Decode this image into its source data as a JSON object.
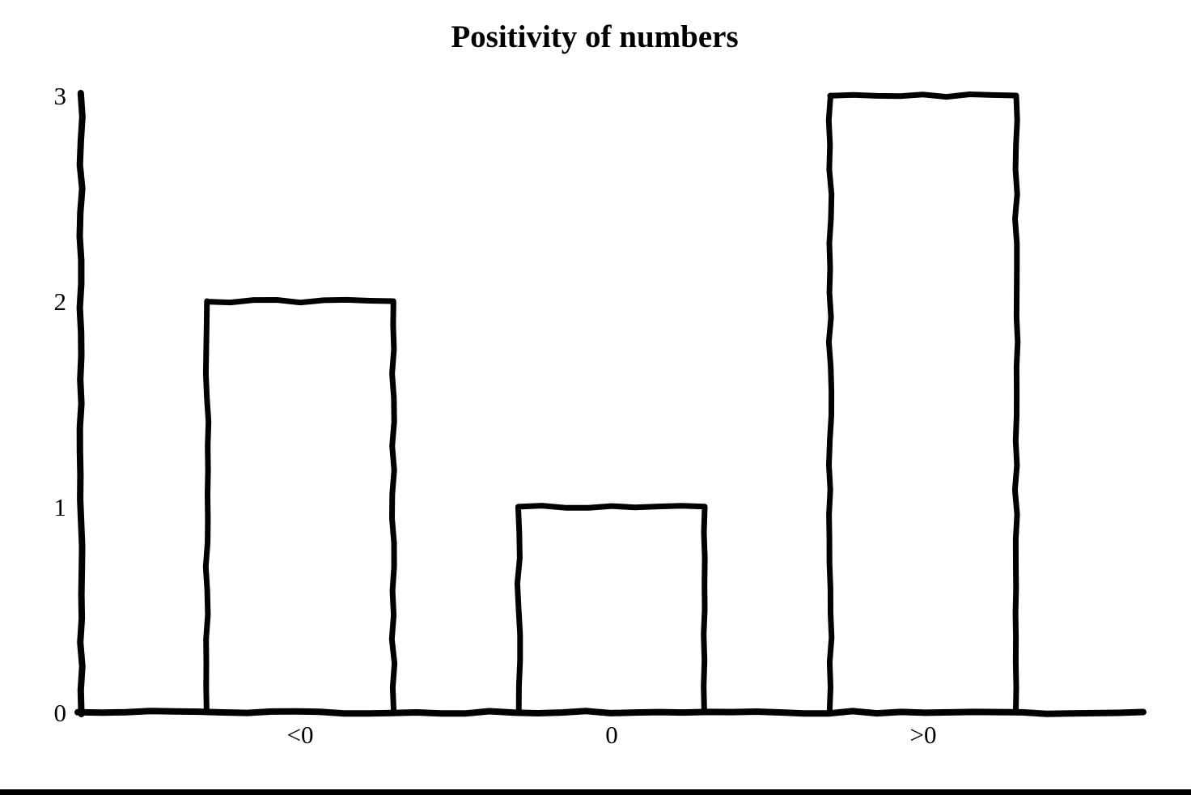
{
  "page": {
    "background": "#ffffff",
    "ink": "#000000"
  },
  "chart_data": {
    "type": "bar",
    "title": "Positivity of numbers",
    "categories": [
      "<0",
      "0",
      ">0"
    ],
    "values": [
      2,
      1,
      3
    ],
    "xlabel": "",
    "ylabel": "",
    "ylim": [
      0,
      3
    ],
    "yticks": [
      0,
      1,
      2,
      3
    ],
    "grid": false,
    "legend": false,
    "style": "hand-drawn",
    "bar_fill": "#ffffff",
    "bar_stroke": "#000000",
    "axis_color": "#000000"
  }
}
